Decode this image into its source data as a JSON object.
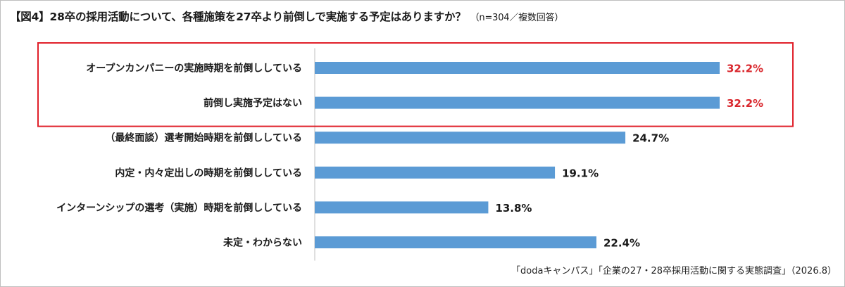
{
  "title": "【図4】28卒の採用活動について、各種施策を27卒より前倒しで実施する予定はありますか？",
  "subtitle": "（n=304／複数回答）",
  "source": "「dodaキャンパス」「企業の27・28卒採用活動に関する実態調査」（2026.8）",
  "colors": {
    "bar": "#5b9bd5",
    "highlight_label": "#d9262c",
    "highlight_box": "#e0202a",
    "axis": "#bfbfbf"
  },
  "chart_data": {
    "type": "bar",
    "orientation": "horizontal",
    "categories": [
      "オープンカンパニーの実施時期を前倒ししている",
      "前倒し実施予定はない",
      "（最終面談）選考開始時期を前倒ししている",
      "内定・内々定出しの時期を前倒ししている",
      "インターンシップの選考（実施）時期を前倒ししている",
      "未定・わからない"
    ],
    "values": [
      32.2,
      32.2,
      24.7,
      19.1,
      13.8,
      22.4
    ],
    "value_labels": [
      "32.2%",
      "32.2%",
      "24.7%",
      "19.1%",
      "13.8%",
      "22.4%"
    ],
    "highlighted": [
      0,
      1
    ],
    "unit": "%",
    "xlim": [
      0,
      32.2
    ],
    "grid": false,
    "legend": "none"
  }
}
